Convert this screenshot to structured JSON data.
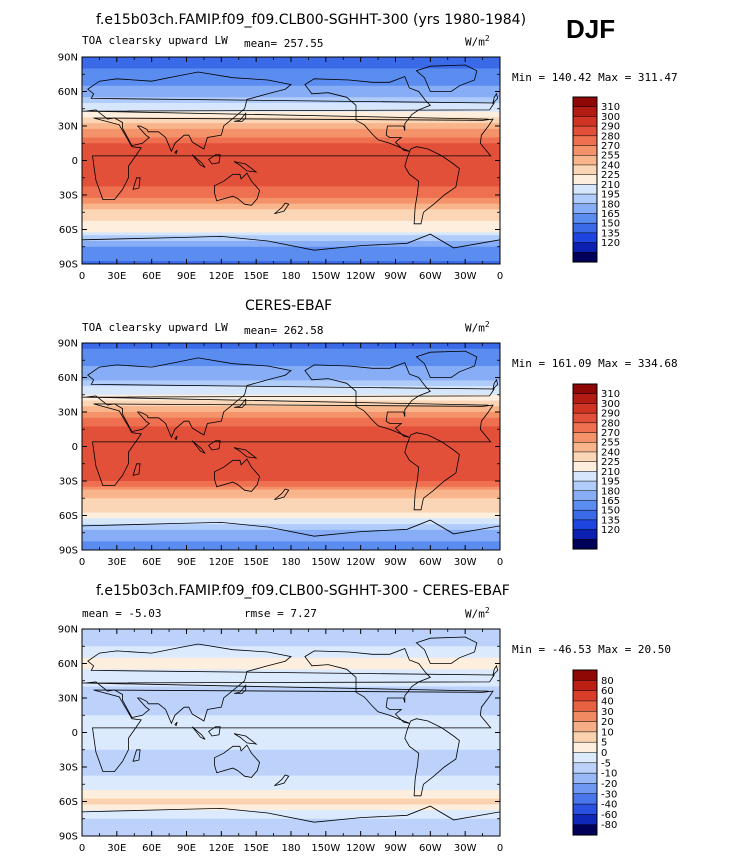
{
  "season": "DJF",
  "colors": {
    "abs_palette": [
      "#00005a",
      "#0b1fb0",
      "#1f45e0",
      "#3a6ae8",
      "#5b8cf0",
      "#86adf5",
      "#b0ccfa",
      "#d6e7fc",
      "#fdeedd",
      "#fbd6b6",
      "#f8b48a",
      "#f4926a",
      "#ee7050",
      "#e3503a",
      "#cf3424",
      "#b21c12",
      "#8f0806"
    ],
    "diff_palette": [
      "#00005a",
      "#1028b8",
      "#2a50e0",
      "#4a76ec",
      "#6e98f2",
      "#98b8f6",
      "#bcd2fa",
      "#dceafd",
      "#fdeedd",
      "#fad2b0",
      "#f6ae86",
      "#f08a62",
      "#e86242",
      "#d83e2a",
      "#bc2014",
      "#8f0806"
    ],
    "land_outline": "#000000"
  },
  "panels": [
    {
      "title": "f.e15b03ch.FAMIP.f09_f09.CLB00-SGHHT-300 (yrs 1980-1984)",
      "left_label": "TOA clearsky upward LW",
      "mid_label": "mean= 257.55",
      "unit_label": "W/m",
      "unit_sup": "2",
      "minmax": "Min = 140.42 Max = 311.47",
      "colorbar_labels": [
        "310",
        "300",
        "290",
        "280",
        "270",
        "255",
        "240",
        "225",
        "210",
        "195",
        "180",
        "165",
        "150",
        "135",
        "120"
      ]
    },
    {
      "title": "CERES-EBAF",
      "left_label": "TOA clearsky upward LW",
      "mid_label": "mean= 262.58",
      "unit_label": "W/m",
      "unit_sup": "2",
      "minmax": "Min = 161.09 Max = 334.68",
      "colorbar_labels": [
        "310",
        "300",
        "290",
        "280",
        "270",
        "255",
        "240",
        "225",
        "210",
        "195",
        "180",
        "165",
        "150",
        "135",
        "120"
      ]
    },
    {
      "title": "f.e15b03ch.FAMIP.f09_f09.CLB00-SGHHT-300 - CERES-EBAF",
      "left_label": "mean =   -5.03",
      "mid_label": "rmse =    7.27",
      "unit_label": "W/m",
      "unit_sup": "2",
      "minmax": "Min = -46.53 Max =  20.50",
      "colorbar_labels": [
        "80",
        "60",
        "40",
        "30",
        "20",
        "10",
        "5",
        "0",
        "-5",
        "-10",
        "-20",
        "-30",
        "-40",
        "-60",
        "-80"
      ]
    }
  ],
  "lat_labels": [
    "90N",
    "60N",
    "30N",
    "0",
    "30S",
    "60S",
    "90S"
  ],
  "lon_labels": [
    "0",
    "30E",
    "60E",
    "90E",
    "120E",
    "150E",
    "180",
    "150W",
    "120W",
    "90W",
    "60W",
    "30W",
    "0"
  ],
  "chart_data": [
    {
      "type": "heatmap",
      "title": "f.e15b03ch.FAMIP.f09_f09.CLB00-SGHHT-300 (yrs 1980-1984)",
      "subtitle": "TOA clearsky upward LW",
      "units": "W/m2",
      "mean": 257.55,
      "min": 140.42,
      "max": 311.47,
      "contour_levels": [
        120,
        135,
        150,
        165,
        180,
        195,
        210,
        225,
        240,
        255,
        270,
        280,
        290,
        300,
        310
      ],
      "xlim": [
        0,
        360
      ],
      "ylim": [
        -90,
        90
      ],
      "zonal_profile": [
        {
          "lat": 90,
          "value": 150
        },
        {
          "lat": 75,
          "value": 170
        },
        {
          "lat": 60,
          "value": 185
        },
        {
          "lat": 45,
          "value": 220
        },
        {
          "lat": 30,
          "value": 265
        },
        {
          "lat": 15,
          "value": 290
        },
        {
          "lat": 0,
          "value": 290
        },
        {
          "lat": -15,
          "value": 295
        },
        {
          "lat": -30,
          "value": 285
        },
        {
          "lat": -45,
          "value": 250
        },
        {
          "lat": -60,
          "value": 230
        },
        {
          "lat": -75,
          "value": 180
        },
        {
          "lat": -90,
          "value": 160
        }
      ]
    },
    {
      "type": "heatmap",
      "title": "CERES-EBAF",
      "subtitle": "TOA clearsky upward LW",
      "units": "W/m2",
      "mean": 262.58,
      "min": 161.09,
      "max": 334.68,
      "contour_levels": [
        120,
        135,
        150,
        165,
        180,
        195,
        210,
        225,
        240,
        255,
        270,
        280,
        290,
        300,
        310
      ],
      "xlim": [
        0,
        360
      ],
      "ylim": [
        -90,
        90
      ],
      "zonal_profile": [
        {
          "lat": 90,
          "value": 160
        },
        {
          "lat": 75,
          "value": 175
        },
        {
          "lat": 60,
          "value": 190
        },
        {
          "lat": 45,
          "value": 225
        },
        {
          "lat": 30,
          "value": 270
        },
        {
          "lat": 15,
          "value": 295
        },
        {
          "lat": 0,
          "value": 295
        },
        {
          "lat": -15,
          "value": 300
        },
        {
          "lat": -30,
          "value": 290
        },
        {
          "lat": -45,
          "value": 255
        },
        {
          "lat": -60,
          "value": 235
        },
        {
          "lat": -75,
          "value": 190
        },
        {
          "lat": -90,
          "value": 170
        }
      ]
    },
    {
      "type": "heatmap",
      "title": "f.e15b03ch.FAMIP.f09_f09.CLB00-SGHHT-300 - CERES-EBAF",
      "units": "W/m2",
      "mean": -5.03,
      "rmse": 7.27,
      "min": -46.53,
      "max": 20.5,
      "contour_levels": [
        -80,
        -60,
        -40,
        -30,
        -20,
        -10,
        -5,
        0,
        5,
        10,
        20,
        30,
        40,
        60,
        80
      ],
      "xlim": [
        0,
        360
      ],
      "ylim": [
        -90,
        90
      ],
      "zonal_profile": [
        {
          "lat": 90,
          "value": -10
        },
        {
          "lat": 75,
          "value": -5
        },
        {
          "lat": 60,
          "value": 2
        },
        {
          "lat": 45,
          "value": -3
        },
        {
          "lat": 30,
          "value": -8
        },
        {
          "lat": 15,
          "value": -5
        },
        {
          "lat": 0,
          "value": -5
        },
        {
          "lat": -15,
          "value": -5
        },
        {
          "lat": -30,
          "value": -6
        },
        {
          "lat": -45,
          "value": -4
        },
        {
          "lat": -60,
          "value": 6
        },
        {
          "lat": -75,
          "value": -5
        },
        {
          "lat": -90,
          "value": -8
        }
      ]
    }
  ]
}
